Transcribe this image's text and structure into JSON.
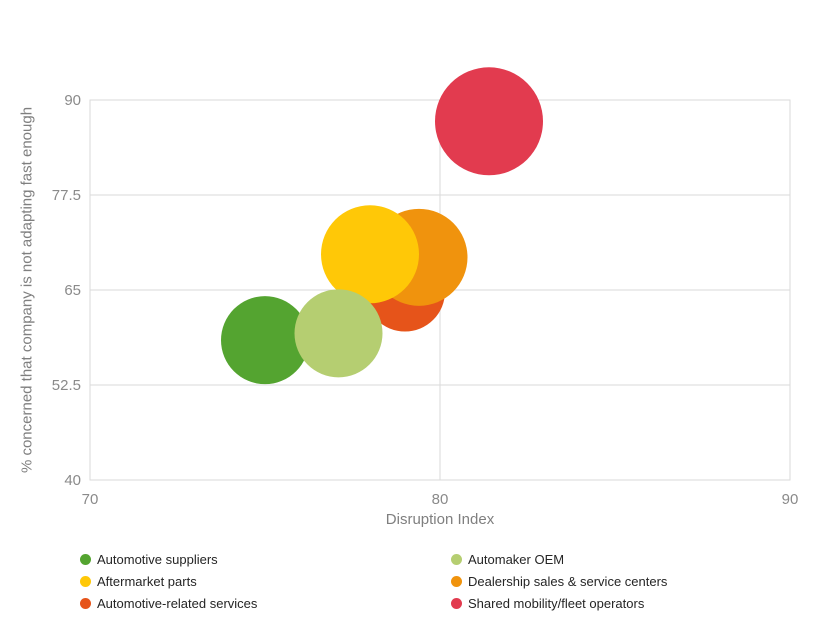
{
  "chart_data": {
    "type": "scatter",
    "subtype": "bubble",
    "title": "",
    "xlabel": "Disruption Index",
    "ylabel": "% concerned that company is not adapting fast enough",
    "xlim": [
      70,
      90
    ],
    "ylim": [
      40,
      90
    ],
    "xticks": [
      70,
      80,
      90
    ],
    "yticks": [
      90,
      77.5,
      65,
      52.5,
      40
    ],
    "grid": true,
    "legend_position": "bottom",
    "series": [
      {
        "name": "Automotive suppliers",
        "x": 75.0,
        "y": 58.4,
        "radius_px": 44,
        "color": "#54A430"
      },
      {
        "name": "Automaker OEM",
        "x": 77.1,
        "y": 59.3,
        "radius_px": 44,
        "color": "#B5CE71"
      },
      {
        "name": "Aftermarket parts",
        "x": 78.0,
        "y": 69.7,
        "radius_px": 49,
        "color": "#FFC807"
      },
      {
        "name": "Dealership sales & service centers",
        "x": 79.4,
        "y": 69.3,
        "radius_px": 48.5,
        "color": "#F0930D"
      },
      {
        "name": "Automotive-related services",
        "x": 79.0,
        "y": 64.8,
        "radius_px": 40,
        "color": "#E6541A"
      },
      {
        "name": "Shared mobility/fleet operators",
        "x": 81.4,
        "y": 87.2,
        "radius_px": 54,
        "color": "#E23B4F"
      }
    ],
    "draw_order": [
      "Automotive-related services",
      "Dealership sales & service centers",
      "Aftermarket parts",
      "Automotive suppliers",
      "Automaker OEM",
      "Shared mobility/fleet operators"
    ],
    "legend_columns": [
      [
        "Automotive suppliers",
        "Aftermarket parts",
        "Automotive-related services"
      ],
      [
        "Automaker OEM",
        "Dealership sales & service centers",
        "Shared mobility/fleet operators"
      ]
    ]
  },
  "colors": {
    "background": "#FFFFFF",
    "gridline": "#DADADA",
    "axis_text": "#8A8A8A",
    "legend_text": "#252525"
  }
}
